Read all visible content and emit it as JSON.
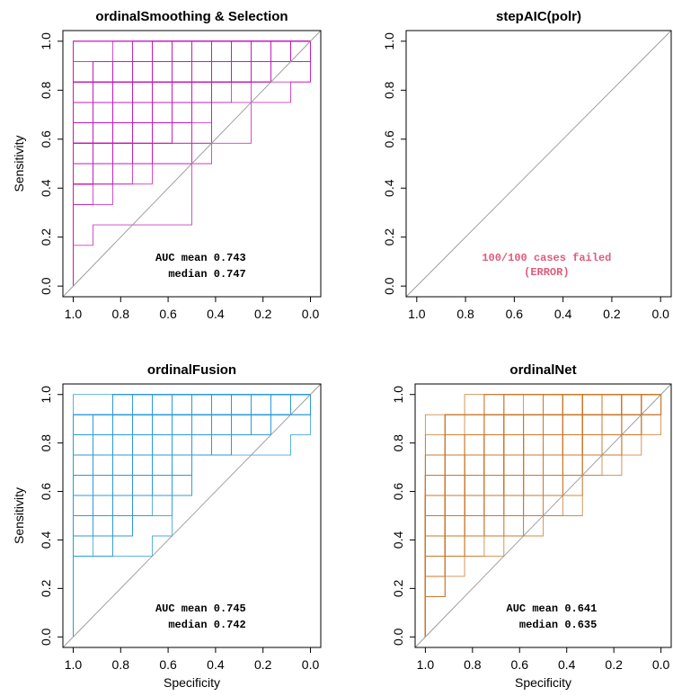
{
  "chart_data": [
    {
      "type": "line",
      "title": "ordinalSmoothing & Selection",
      "xlabel": "",
      "ylabel": "Sensitivity",
      "xlim": [
        1.0,
        0.0
      ],
      "ylim": [
        0.0,
        1.0
      ],
      "x_ticks": [
        "1.0",
        "0.8",
        "0.6",
        "0.4",
        "0.2",
        "0.0"
      ],
      "y_ticks": [
        "0.0",
        "0.2",
        "0.4",
        "0.6",
        "0.8",
        "1.0"
      ],
      "color": "#c41cb8",
      "diagonal_reference": true,
      "annotation": {
        "line1": "AUC mean 0.743",
        "line2": "median 0.747"
      },
      "auc_mean": 0.743,
      "auc_median": 0.747,
      "n_curves": 100
    },
    {
      "type": "line",
      "title": "stepAIC(polr)",
      "xlabel": "",
      "ylabel": "",
      "xlim": [
        1.0,
        0.0
      ],
      "ylim": [
        0.0,
        1.0
      ],
      "x_ticks": [
        "1.0",
        "0.8",
        "0.6",
        "0.4",
        "0.2",
        "0.0"
      ],
      "y_ticks": [
        "0.0",
        "0.2",
        "0.4",
        "0.6",
        "0.8",
        "1.0"
      ],
      "color": "#e05a7a",
      "diagonal_reference": true,
      "failure": {
        "line1": "100/100 cases failed",
        "line2": "(ERROR)"
      },
      "n_curves": 0
    },
    {
      "type": "line",
      "title": "ordinalFusion",
      "xlabel": "Specificity",
      "ylabel": "Sensitivity",
      "xlim": [
        1.0,
        0.0
      ],
      "ylim": [
        0.0,
        1.0
      ],
      "x_ticks": [
        "1.0",
        "0.8",
        "0.6",
        "0.4",
        "0.2",
        "0.0"
      ],
      "y_ticks": [
        "0.0",
        "0.2",
        "0.4",
        "0.6",
        "0.8",
        "1.0"
      ],
      "color": "#2b9ad8",
      "diagonal_reference": true,
      "annotation": {
        "line1": "AUC mean 0.745",
        "line2": "median 0.742"
      },
      "auc_mean": 0.745,
      "auc_median": 0.742,
      "n_curves": 100
    },
    {
      "type": "line",
      "title": "ordinalNet",
      "xlabel": "Specificity",
      "ylabel": "",
      "xlim": [
        1.0,
        0.0
      ],
      "ylim": [
        0.0,
        1.0
      ],
      "x_ticks": [
        "1.0",
        "0.8",
        "0.6",
        "0.4",
        "0.2",
        "0.0"
      ],
      "y_ticks": [
        "0.0",
        "0.2",
        "0.4",
        "0.6",
        "0.8",
        "1.0"
      ],
      "color": "#c8782a",
      "diagonal_reference": true,
      "annotation": {
        "line1": "AUC mean 0.641",
        "line2": "median 0.635"
      },
      "auc_mean": 0.641,
      "auc_median": 0.635,
      "n_curves": 100
    }
  ]
}
